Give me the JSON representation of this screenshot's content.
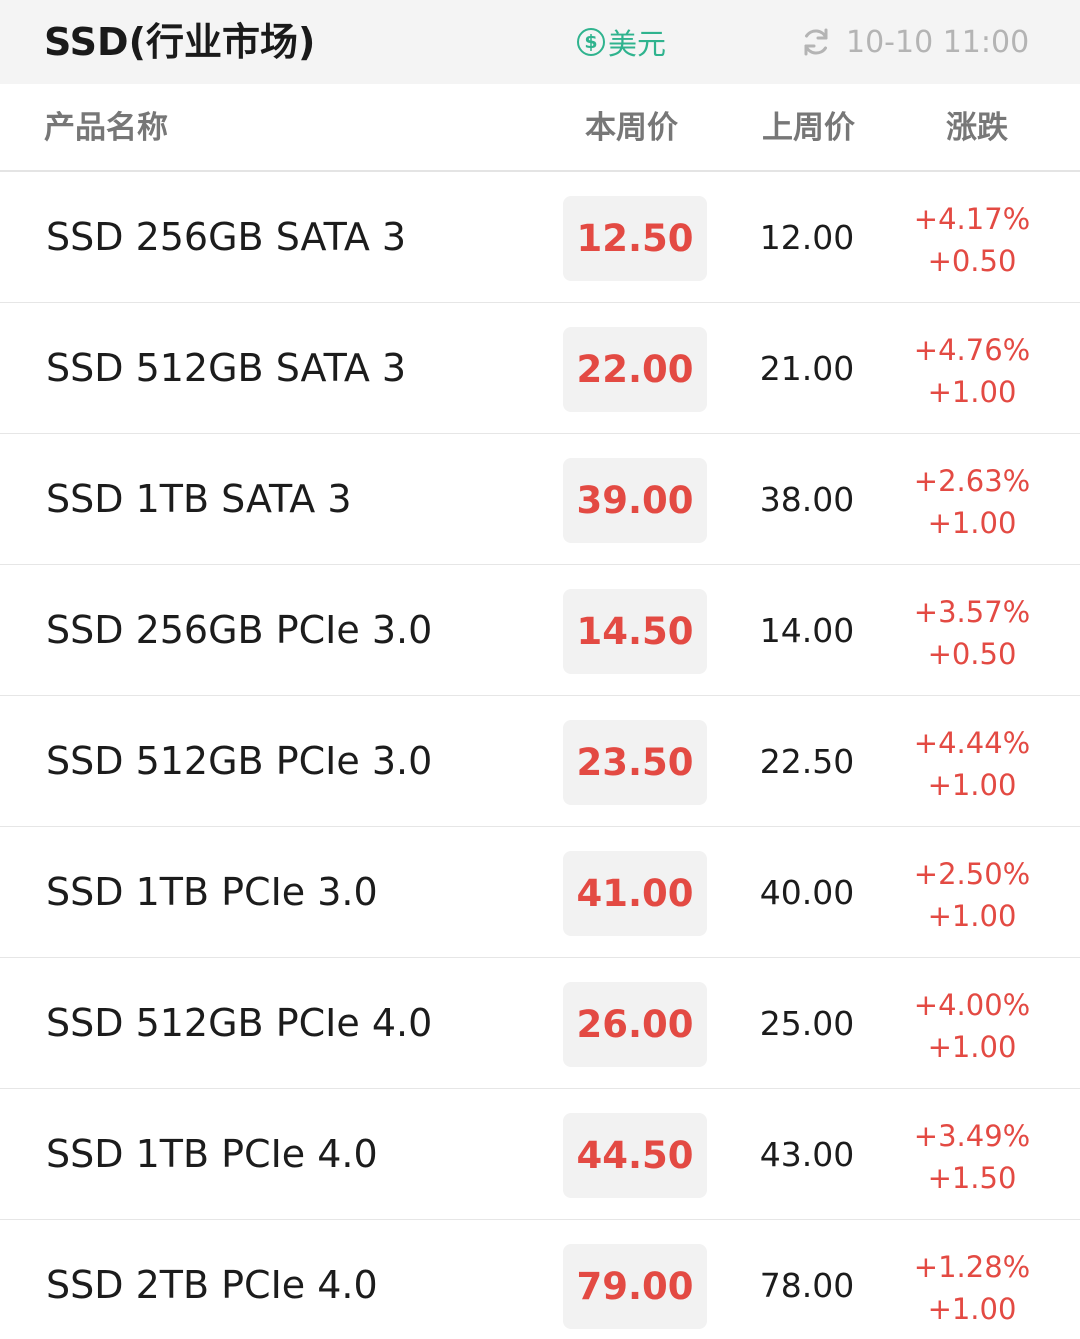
{
  "header": {
    "title": "SSD(行业市场)",
    "currency_label": "美元",
    "currency_icon": "dollar-circle-icon",
    "currency_symbol": "$",
    "refresh_icon": "refresh-icon",
    "updated_time": "10-10 11:00"
  },
  "columns": {
    "name": "产品名称",
    "current": "本周价",
    "previous": "上周价",
    "change": "涨跌"
  },
  "colors": {
    "accent_green": "#2fb38e",
    "price_up_red": "#e34a43"
  },
  "rows": [
    {
      "name": "SSD 256GB SATA 3",
      "current": "12.50",
      "previous": "12.00",
      "change_pct": "+4.17%",
      "change_abs": "+0.50"
    },
    {
      "name": "SSD 512GB SATA 3",
      "current": "22.00",
      "previous": "21.00",
      "change_pct": "+4.76%",
      "change_abs": "+1.00"
    },
    {
      "name": "SSD 1TB SATA 3",
      "current": "39.00",
      "previous": "38.00",
      "change_pct": "+2.63%",
      "change_abs": "+1.00"
    },
    {
      "name": "SSD 256GB PCIe 3.0",
      "current": "14.50",
      "previous": "14.00",
      "change_pct": "+3.57%",
      "change_abs": "+0.50"
    },
    {
      "name": "SSD 512GB PCIe 3.0",
      "current": "23.50",
      "previous": "22.50",
      "change_pct": "+4.44%",
      "change_abs": "+1.00"
    },
    {
      "name": "SSD 1TB PCIe 3.0",
      "current": "41.00",
      "previous": "40.00",
      "change_pct": "+2.50%",
      "change_abs": "+1.00"
    },
    {
      "name": "SSD 512GB PCIe 4.0",
      "current": "26.00",
      "previous": "25.00",
      "change_pct": "+4.00%",
      "change_abs": "+1.00"
    },
    {
      "name": "SSD 1TB PCIe 4.0",
      "current": "44.50",
      "previous": "43.00",
      "change_pct": "+3.49%",
      "change_abs": "+1.50"
    },
    {
      "name": "SSD 2TB PCIe 4.0",
      "current": "79.00",
      "previous": "78.00",
      "change_pct": "+1.28%",
      "change_abs": "+1.00"
    }
  ]
}
